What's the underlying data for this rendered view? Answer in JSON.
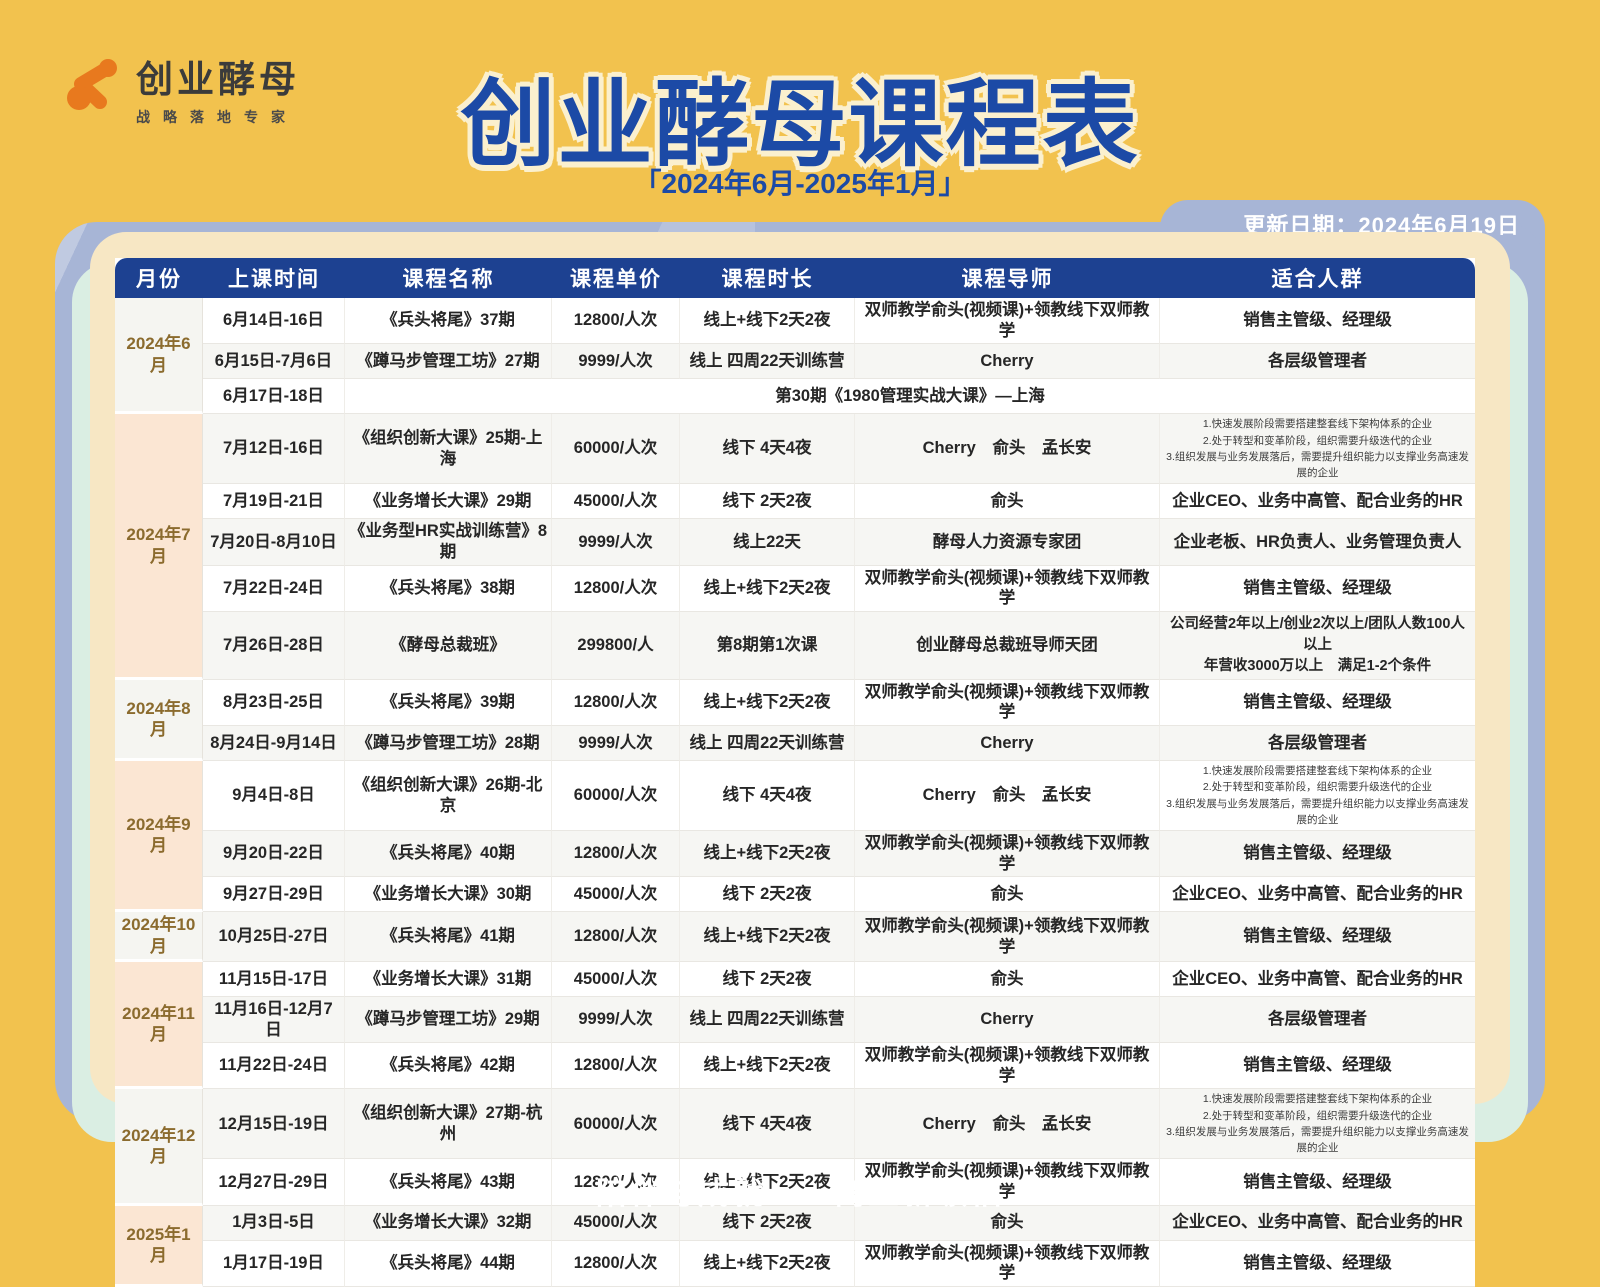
{
  "logo": {
    "name": "创业酵母",
    "tagline": "战略落地专家",
    "icon_color": "#E8791E"
  },
  "header": {
    "title": "创业酵母课程表",
    "subtitle": "「2024年6月-2025年1月」",
    "update_date": "更新日期：2024年6月19日",
    "title_color": "#1C4AA6",
    "header_bar_color": "#1D4191"
  },
  "table": {
    "columns": [
      "月份",
      "上课时间",
      "课程名称",
      "课程单价",
      "课程时长",
      "课程导师",
      "适合人群"
    ],
    "groups": [
      {
        "month": "2024年6月",
        "tone": "light",
        "rows": [
          {
            "time": "6月14日-16日",
            "course": "《兵头将尾》37期",
            "price": "12800/人次",
            "duration": "线上+线下2天2夜",
            "tutor": "双师教学俞头(视频课)+领教线下双师教学",
            "audience": "销售主管级、经理级"
          },
          {
            "time": "6月15日-7月6日",
            "course": "《蹲马步管理工坊》27期",
            "price": "9999/人次",
            "duration": "线上 四周22天训练营",
            "tutor": "Cherry",
            "audience": "各层级管理者"
          },
          {
            "time": "6月17日-18日",
            "merged": "第30期《1980管理实战大课》—上海"
          }
        ]
      },
      {
        "month": "2024年7月",
        "tone": "peach",
        "rows": [
          {
            "time": "7月12日-16日",
            "course": "《组织创新大课》25期-上海",
            "price": "60000/人次",
            "duration": "线下 4天4夜",
            "tutor": "Cherry　俞头　孟长安",
            "audience": "1.快速发展阶段需要搭建整套线下架构体系的企业\n2.处于转型和变革阶段，组织需要升级迭代的企业\n3.组织发展与业务发展落后，需要提升组织能力以支撑业务高速发展的企业",
            "tall": true,
            "audTiny": true
          },
          {
            "time": "7月19日-21日",
            "course": "《业务增长大课》29期",
            "price": "45000/人次",
            "duration": "线下 2天2夜",
            "tutor": "俞头",
            "audience": "企业CEO、业务中高管、配合业务的HR"
          },
          {
            "time": "7月20日-8月10日",
            "course": "《业务型HR实战训练营》8期",
            "price": "9999/人次",
            "duration": "线上22天",
            "tutor": "酵母人力资源专家团",
            "audience": "企业老板、HR负责人、业务管理负责人"
          },
          {
            "time": "7月22日-24日",
            "course": "《兵头将尾》38期",
            "price": "12800/人次",
            "duration": "线上+线下2天2夜",
            "tutor": "双师教学俞头(视频课)+领教线下双师教学",
            "audience": "销售主管级、经理级"
          },
          {
            "time": "7月26日-28日",
            "course": "《酵母总裁班》",
            "price": "299800/人",
            "duration": "第8期第1次课",
            "tutor": "创业酵母总裁班导师天团",
            "audience": "公司经营2年以上/创业2次以上/团队人数100人以上\n年营收3000万以上　满足1-2个条件",
            "mid": true,
            "audTwo": true
          }
        ]
      },
      {
        "month": "2024年8月",
        "tone": "light",
        "rows": [
          {
            "time": "8月23日-25日",
            "course": "《兵头将尾》39期",
            "price": "12800/人次",
            "duration": "线上+线下2天2夜",
            "tutor": "双师教学俞头(视频课)+领教线下双师教学",
            "audience": "销售主管级、经理级"
          },
          {
            "time": "8月24日-9月14日",
            "course": "《蹲马步管理工坊》28期",
            "price": "9999/人次",
            "duration": "线上 四周22天训练营",
            "tutor": "Cherry",
            "audience": "各层级管理者"
          }
        ]
      },
      {
        "month": "2024年9月",
        "tone": "peach",
        "rows": [
          {
            "time": "9月4日-8日",
            "course": "《组织创新大课》26期-北京",
            "price": "60000/人次",
            "duration": "线下 4天4夜",
            "tutor": "Cherry　俞头　孟长安",
            "audience": "1.快速发展阶段需要搭建整套线下架构体系的企业\n2.处于转型和变革阶段，组织需要升级迭代的企业\n3.组织发展与业务发展落后，需要提升组织能力以支撑业务高速发展的企业",
            "tall": true,
            "audTiny": true
          },
          {
            "time": "9月20日-22日",
            "course": "《兵头将尾》40期",
            "price": "12800/人次",
            "duration": "线上+线下2天2夜",
            "tutor": "双师教学俞头(视频课)+领教线下双师教学",
            "audience": "销售主管级、经理级"
          },
          {
            "time": "9月27日-29日",
            "course": "《业务增长大课》30期",
            "price": "45000/人次",
            "duration": "线下 2天2夜",
            "tutor": "俞头",
            "audience": "企业CEO、业务中高管、配合业务的HR"
          }
        ]
      },
      {
        "month": "2024年10月",
        "tone": "light",
        "rows": [
          {
            "time": "10月25日-27日",
            "course": "《兵头将尾》41期",
            "price": "12800/人次",
            "duration": "线上+线下2天2夜",
            "tutor": "双师教学俞头(视频课)+领教线下双师教学",
            "audience": "销售主管级、经理级"
          }
        ]
      },
      {
        "month": "2024年11月",
        "tone": "peach",
        "rows": [
          {
            "time": "11月15日-17日",
            "course": "《业务增长大课》31期",
            "price": "45000/人次",
            "duration": "线下 2天2夜",
            "tutor": "俞头",
            "audience": "企业CEO、业务中高管、配合业务的HR"
          },
          {
            "time": "11月16日-12月7日",
            "course": "《蹲马步管理工坊》29期",
            "price": "9999/人次",
            "duration": "线上 四周22天训练营",
            "tutor": "Cherry",
            "audience": "各层级管理者"
          },
          {
            "time": "11月22日-24日",
            "course": "《兵头将尾》42期",
            "price": "12800/人次",
            "duration": "线上+线下2天2夜",
            "tutor": "双师教学俞头(视频课)+领教线下双师教学",
            "audience": "销售主管级、经理级"
          }
        ]
      },
      {
        "month": "2024年12月",
        "tone": "light",
        "rows": [
          {
            "time": "12月15日-19日",
            "course": "《组织创新大课》27期-杭州",
            "price": "60000/人次",
            "duration": "线下 4天4夜",
            "tutor": "Cherry　俞头　孟长安",
            "audience": "1.快速发展阶段需要搭建整套线下架构体系的企业\n2.处于转型和变革阶段，组织需要升级迭代的企业\n3.组织发展与业务发展落后，需要提升组织能力以支撑业务高速发展的企业",
            "tall": true,
            "audTiny": true
          },
          {
            "time": "12月27日-29日",
            "course": "《兵头将尾》43期",
            "price": "12800/人次",
            "duration": "线上+线下2天2夜",
            "tutor": "双师教学俞头(视频课)+领教线下双师教学",
            "audience": "销售主管级、经理级"
          }
        ]
      },
      {
        "month": "2025年1月",
        "tone": "peach",
        "rows": [
          {
            "time": "1月3日-5日",
            "course": "《业务增长大课》32期",
            "price": "45000/人次",
            "duration": "线下 2天2夜",
            "tutor": "俞头",
            "audience": "企业CEO、业务中高管、配合业务的HR"
          },
          {
            "time": "1月17日-19日",
            "course": "《兵头将尾》44期",
            "price": "12800/人次",
            "duration": "线上+线下2天2夜",
            "tutor": "双师教学俞头(视频课)+领教线下双师教学",
            "audience": "销售主管级、经理级"
          }
        ]
      }
    ]
  },
  "footer": {
    "slogan": "陪伴与成就　　商业新领袖"
  }
}
